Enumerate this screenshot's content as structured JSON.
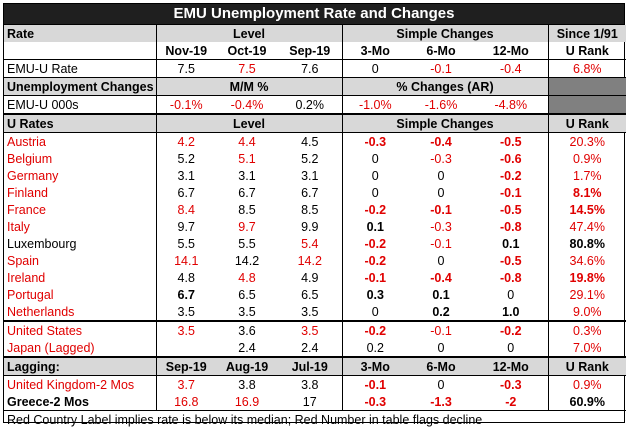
{
  "title": "EMU Unemployment Rate and Changes",
  "header1": {
    "rate": "Rate",
    "level": "Level",
    "simple_changes": "Simple Changes",
    "since": "Since 1/91",
    "months": [
      "Nov-19",
      "Oct-19",
      "Sep-19"
    ],
    "changes": [
      "3-Mo",
      "6-Mo",
      "12-Mo"
    ],
    "urank": "U Rank"
  },
  "emu_rate": {
    "label": "EMU-U Rate",
    "level": [
      "7.5",
      "7.5",
      "7.6"
    ],
    "changes": [
      "0",
      "-0.1",
      "-0.4"
    ],
    "urank": "6.8%"
  },
  "unemp_changes": {
    "label": "Unemployment Changes",
    "mm": "M/M %",
    "pct": "% Changes (AR)"
  },
  "emu_000s": {
    "label": "EMU-U 000s",
    "mm": [
      "-0.1%",
      "-0.4%",
      "0.2%"
    ],
    "pct": [
      "-1.0%",
      "-1.6%",
      "-4.8%"
    ]
  },
  "header2": {
    "urates": "U Rates",
    "level": "Level",
    "simple_changes": "Simple Changes",
    "urank": "U Rank"
  },
  "countries": [
    {
      "name": "Austria",
      "level": [
        "4.2",
        "4.4",
        "4.5"
      ],
      "changes": [
        "-0.3",
        "-0.4",
        "-0.5"
      ],
      "urank": "20.3%"
    },
    {
      "name": "Belgium",
      "level": [
        "5.2",
        "5.1",
        "5.2"
      ],
      "changes": [
        "0",
        "-0.3",
        "-0.6"
      ],
      "urank": "0.9%"
    },
    {
      "name": "Germany",
      "level": [
        "3.1",
        "3.1",
        "3.1"
      ],
      "changes": [
        "0",
        "0",
        "-0.2"
      ],
      "urank": "1.7%"
    },
    {
      "name": "Finland",
      "level": [
        "6.7",
        "6.7",
        "6.7"
      ],
      "changes": [
        "0",
        "0",
        "-0.1"
      ],
      "urank": "8.1%"
    },
    {
      "name": "France",
      "level": [
        "8.4",
        "8.5",
        "8.5"
      ],
      "changes": [
        "-0.2",
        "-0.1",
        "-0.5"
      ],
      "urank": "14.5%"
    },
    {
      "name": "Italy",
      "level": [
        "9.7",
        "9.7",
        "9.9"
      ],
      "changes": [
        "0.1",
        "-0.3",
        "-0.8"
      ],
      "urank": "47.4%"
    },
    {
      "name": "Luxembourg",
      "level": [
        "5.5",
        "5.5",
        "5.4"
      ],
      "changes": [
        "-0.2",
        "-0.1",
        "0.1"
      ],
      "urank": "80.8%"
    },
    {
      "name": "Spain",
      "level": [
        "14.1",
        "14.2",
        "14.2"
      ],
      "changes": [
        "-0.2",
        "0",
        "-0.5"
      ],
      "urank": "34.6%"
    },
    {
      "name": "Ireland",
      "level": [
        "4.8",
        "4.8",
        "4.9"
      ],
      "changes": [
        "-0.1",
        "-0.4",
        "-0.8"
      ],
      "urank": "19.8%"
    },
    {
      "name": "Portugal",
      "level": [
        "6.7",
        "6.5",
        "6.5"
      ],
      "changes": [
        "0.3",
        "0.1",
        "0"
      ],
      "urank": "29.1%"
    },
    {
      "name": "Netherlands",
      "level": [
        "3.5",
        "3.5",
        "3.5"
      ],
      "changes": [
        "0",
        "0.2",
        "1.0"
      ],
      "urank": "9.0%"
    }
  ],
  "others": [
    {
      "name": "United States",
      "level": [
        "3.5",
        "3.6",
        "3.5"
      ],
      "changes": [
        "-0.2",
        "-0.1",
        "-0.2"
      ],
      "urank": "0.3%"
    },
    {
      "name": "Japan (Lagged)",
      "level": [
        "",
        "2.4",
        "2.4"
      ],
      "changes": [
        "0.2",
        "0",
        "0"
      ],
      "urank": "7.0%"
    }
  ],
  "header3": {
    "lagging": "Lagging:",
    "months": [
      "Sep-19",
      "Aug-19",
      "Jul-19"
    ],
    "changes": [
      "3-Mo",
      "6-Mo",
      "12-Mo"
    ],
    "urank": "U Rank"
  },
  "lagging": [
    {
      "name": "United Kingdom-2 Mos",
      "level": [
        "3.7",
        "3.8",
        "3.8"
      ],
      "changes": [
        "-0.1",
        "0",
        "-0.3"
      ],
      "urank": "0.9%"
    },
    {
      "name": "Greece-2 Mos",
      "level": [
        "16.8",
        "16.9",
        "17"
      ],
      "changes": [
        "-0.3",
        "-1.3",
        "-2"
      ],
      "urank": "60.9%"
    }
  ],
  "footnote": "Red Country Label implies rate is below its median; Red Number in table flags decline",
  "colors": {
    "title_bg": "#1f1f1f",
    "red": "#e00000",
    "header_gray": "#d8d8d8",
    "dark_gray": "#808080"
  }
}
